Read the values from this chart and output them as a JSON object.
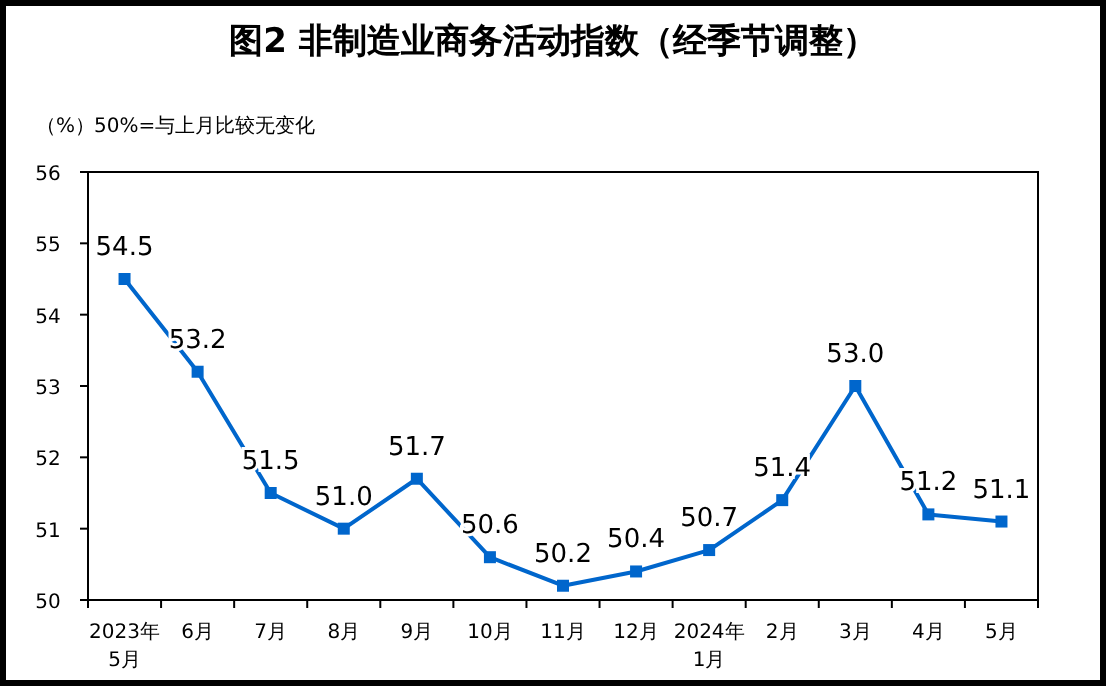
{
  "chart_data": {
    "type": "line",
    "title": "图2  非制造业商务活动指数（经季节调整）",
    "ylabel": "（%）",
    "annotations": [
      "50%=与上月比较无变化"
    ],
    "categories": [
      "2023年\n5月",
      "6月",
      "7月",
      "8月",
      "9月",
      "10月",
      "11月",
      "12月",
      "2024年\n1月",
      "2月",
      "3月",
      "4月",
      "5月"
    ],
    "series": [
      {
        "color": "#0066cc",
        "values": [
          54.5,
          53.2,
          51.5,
          51.0,
          51.7,
          50.6,
          50.2,
          50.4,
          50.7,
          51.4,
          53.0,
          51.2,
          51.1
        ],
        "value_labels": [
          "54.5",
          "53.2",
          "51.5",
          "51.0",
          "51.7",
          "50.6",
          "50.2",
          "50.4",
          "50.7",
          "51.4",
          "53.0",
          "51.2",
          "51.1"
        ]
      }
    ],
    "ylim": [
      50,
      56
    ],
    "yticks": [
      50,
      51,
      52,
      53,
      54,
      55,
      56
    ],
    "grid": false,
    "marker": "square",
    "line_style": "solid"
  }
}
